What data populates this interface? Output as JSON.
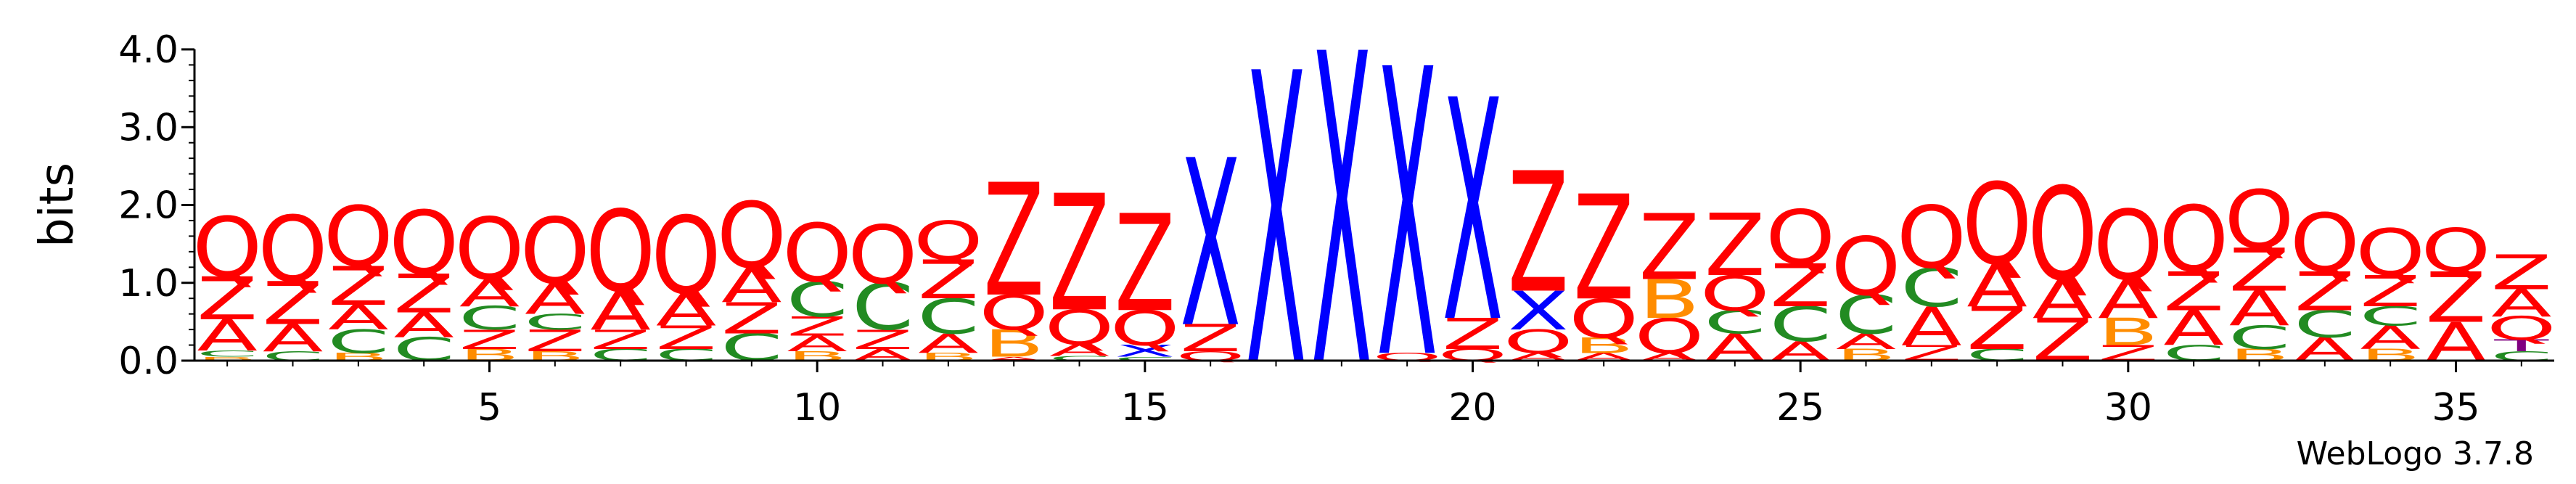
{
  "chart_data": {
    "type": "sequence-logo",
    "ylabel": "bits",
    "ylim": [
      0,
      4.0
    ],
    "y_ticks": [
      "0.0",
      "1.0",
      "2.0",
      "3.0",
      "4.0"
    ],
    "x_ticks": [
      "5",
      "10",
      "15",
      "20",
      "25",
      "30",
      "35"
    ],
    "x_tick_positions": [
      5,
      10,
      15,
      20,
      25,
      30,
      35
    ],
    "num_positions": 36,
    "grid": false,
    "colors": {
      "Q": "#ff0000",
      "Z": "#ff0000",
      "X": "#0000ff",
      "A": "#ff0000",
      "C": "#228b22",
      "B": "#ff8c00",
      "T": "#800080"
    },
    "positions": [
      [
        [
          "B",
          0.05
        ],
        [
          "C",
          0.08
        ],
        [
          "A",
          0.4
        ],
        [
          "Z",
          0.55
        ],
        [
          "Q",
          0.78
        ]
      ],
      [
        [
          "C",
          0.12
        ],
        [
          "A",
          0.35
        ],
        [
          "Z",
          0.55
        ],
        [
          "Q",
          0.85
        ]
      ],
      [
        [
          "B",
          0.1
        ],
        [
          "C",
          0.3
        ],
        [
          "A",
          0.32
        ],
        [
          "Z",
          0.5
        ],
        [
          "Q",
          0.78
        ]
      ],
      [
        [
          "C",
          0.3
        ],
        [
          "A",
          0.32
        ],
        [
          "Z",
          0.5
        ],
        [
          "Q",
          0.82
        ]
      ],
      [
        [
          "B",
          0.15
        ],
        [
          "Z",
          0.25
        ],
        [
          "C",
          0.3
        ],
        [
          "A",
          0.35
        ],
        [
          "Q",
          0.8
        ]
      ],
      [
        [
          "B",
          0.12
        ],
        [
          "Z",
          0.28
        ],
        [
          "C",
          0.2
        ],
        [
          "A",
          0.4
        ],
        [
          "Q",
          0.85
        ]
      ],
      [
        [
          "C",
          0.15
        ],
        [
          "Z",
          0.25
        ],
        [
          "A",
          0.5
        ],
        [
          "Q",
          1.05
        ]
      ],
      [
        [
          "C",
          0.15
        ],
        [
          "Z",
          0.3
        ],
        [
          "A",
          0.42
        ],
        [
          "Q",
          1.0
        ]
      ],
      [
        [
          "C",
          0.35
        ],
        [
          "Z",
          0.4
        ],
        [
          "A",
          0.45
        ],
        [
          "Q",
          0.85
        ]
      ],
      [
        [
          "B",
          0.12
        ],
        [
          "A",
          0.2
        ],
        [
          "Z",
          0.25
        ],
        [
          "C",
          0.45
        ],
        [
          "Q",
          0.75
        ]
      ],
      [
        [
          "A",
          0.15
        ],
        [
          "Z",
          0.25
        ],
        [
          "C",
          0.6
        ],
        [
          "Q",
          0.75
        ]
      ],
      [
        [
          "B",
          0.1
        ],
        [
          "A",
          0.25
        ],
        [
          "C",
          0.45
        ],
        [
          "Z",
          0.5
        ],
        [
          "Q",
          0.5
        ]
      ],
      [
        [
          "A",
          0.05
        ],
        [
          "B",
          0.35
        ],
        [
          "Q",
          0.45
        ],
        [
          "Z",
          1.45
        ]
      ],
      [
        [
          "C",
          0.06
        ],
        [
          "A",
          0.15
        ],
        [
          "Q",
          0.45
        ],
        [
          "Z",
          1.5
        ]
      ],
      [
        [
          "C",
          0.05
        ],
        [
          "X",
          0.15
        ],
        [
          "Q",
          0.45
        ],
        [
          "Z",
          1.25
        ]
      ],
      [
        [
          "Q",
          0.12
        ],
        [
          "Z",
          0.35
        ],
        [
          "X",
          2.15
        ]
      ],
      [
        [
          "X",
          3.75
        ]
      ],
      [
        [
          "X",
          4.0
        ]
      ],
      [
        [
          "Q",
          0.1
        ],
        [
          "X",
          3.7
        ]
      ],
      [
        [
          "Q",
          0.15
        ],
        [
          "Z",
          0.4
        ],
        [
          "X",
          2.85
        ]
      ],
      [
        [
          "A",
          0.1
        ],
        [
          "Q",
          0.3
        ],
        [
          "X",
          0.5
        ],
        [
          "Z",
          1.55
        ]
      ],
      [
        [
          "A",
          0.1
        ],
        [
          "B",
          0.2
        ],
        [
          "Q",
          0.5
        ],
        [
          "Z",
          1.35
        ]
      ],
      [
        [
          "A",
          0.1
        ],
        [
          "Q",
          0.45
        ],
        [
          "B",
          0.5
        ],
        [
          "Z",
          0.85
        ]
      ],
      [
        [
          "A",
          0.35
        ],
        [
          "C",
          0.3
        ],
        [
          "Q",
          0.45
        ],
        [
          "Z",
          0.8
        ]
      ],
      [
        [
          "A",
          0.25
        ],
        [
          "C",
          0.45
        ],
        [
          "Z",
          0.55
        ],
        [
          "Q",
          0.7
        ]
      ],
      [
        [
          "B",
          0.15
        ],
        [
          "A",
          0.2
        ],
        [
          "C",
          0.5
        ],
        [
          "Q",
          0.75
        ]
      ],
      [
        [
          "Z",
          0.2
        ],
        [
          "A",
          0.5
        ],
        [
          "C",
          0.5
        ],
        [
          "Q",
          0.8
        ]
      ],
      [
        [
          "C",
          0.15
        ],
        [
          "Z",
          0.55
        ],
        [
          "A",
          0.55
        ],
        [
          "Q",
          1.05
        ]
      ],
      [
        [
          "Z",
          0.55
        ],
        [
          "A",
          0.5
        ],
        [
          "Q",
          1.2
        ]
      ],
      [
        [
          "Z",
          0.2
        ],
        [
          "B",
          0.35
        ],
        [
          "A",
          0.5
        ],
        [
          "Q",
          0.9
        ]
      ],
      [
        [
          "C",
          0.2
        ],
        [
          "A",
          0.45
        ],
        [
          "Z",
          0.5
        ],
        [
          "Q",
          0.85
        ]
      ],
      [
        [
          "B",
          0.15
        ],
        [
          "C",
          0.3
        ],
        [
          "A",
          0.45
        ],
        [
          "Z",
          0.55
        ],
        [
          "Q",
          0.75
        ]
      ],
      [
        [
          "A",
          0.3
        ],
        [
          "C",
          0.35
        ],
        [
          "Z",
          0.5
        ],
        [
          "Q",
          0.75
        ]
      ],
      [
        [
          "B",
          0.15
        ],
        [
          "A",
          0.3
        ],
        [
          "C",
          0.25
        ],
        [
          "Z",
          0.4
        ],
        [
          "Q",
          0.6
        ]
      ],
      [
        [
          "A",
          0.5
        ],
        [
          "Z",
          0.65
        ],
        [
          "Q",
          0.55
        ]
      ],
      [
        [
          "C",
          0.12
        ],
        [
          "T",
          0.15
        ],
        [
          "Q",
          0.3
        ],
        [
          "A",
          0.35
        ],
        [
          "Z",
          0.45
        ]
      ]
    ]
  },
  "footer": {
    "version_label": "WebLogo 3.7.8"
  }
}
